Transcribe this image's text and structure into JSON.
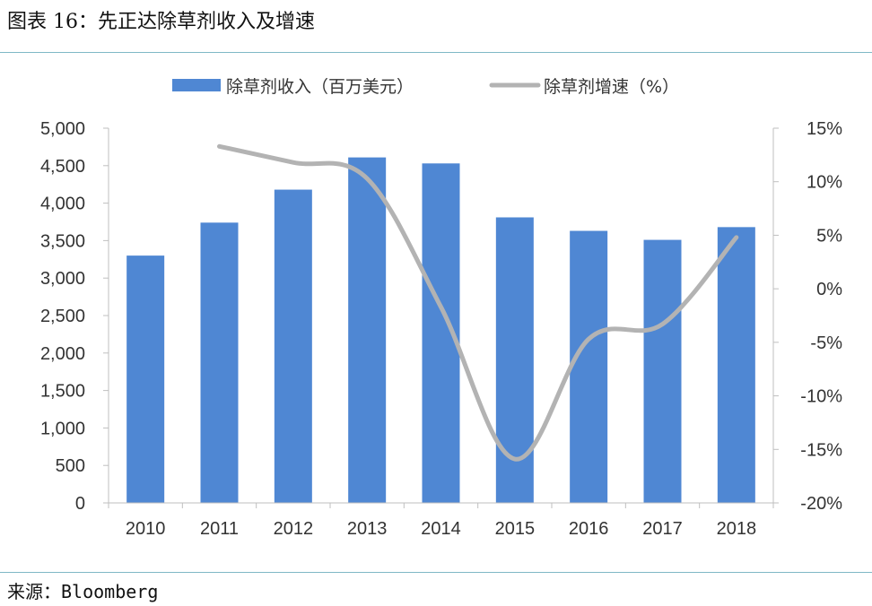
{
  "page": {
    "title": "图表 16：先正达除草剂收入及增速",
    "source": "来源：Bloomberg"
  },
  "chart_data": {
    "type": "bar",
    "categories": [
      "2010",
      "2011",
      "2012",
      "2013",
      "2014",
      "2015",
      "2016",
      "2017",
      "2018"
    ],
    "series": [
      {
        "name": "除草剂收入（百万美元）",
        "type": "bar",
        "axis": "left",
        "color": "#4f87d3",
        "values": [
          3300,
          3740,
          4180,
          4610,
          4530,
          3810,
          3630,
          3510,
          3680
        ]
      },
      {
        "name": "除草剂增速（%）",
        "type": "line",
        "axis": "right",
        "color": "#b3b3b3",
        "values": [
          null,
          13.3,
          11.8,
          10.3,
          -1.7,
          -15.9,
          -4.7,
          -3.3,
          4.8
        ]
      }
    ],
    "ylim": [
      0,
      5000
    ],
    "y_ticks": [
      "5,000",
      "4,500",
      "4,000",
      "3,500",
      "3,000",
      "2,500",
      "2,000",
      "1,500",
      "1,000",
      "500",
      "0"
    ],
    "y2lim": [
      -20,
      15
    ],
    "y2_ticks": [
      "15%",
      "10%",
      "5%",
      "0%",
      "-5%",
      "-10%",
      "-15%",
      "-20%"
    ],
    "legend_position": "top",
    "grid": false
  }
}
